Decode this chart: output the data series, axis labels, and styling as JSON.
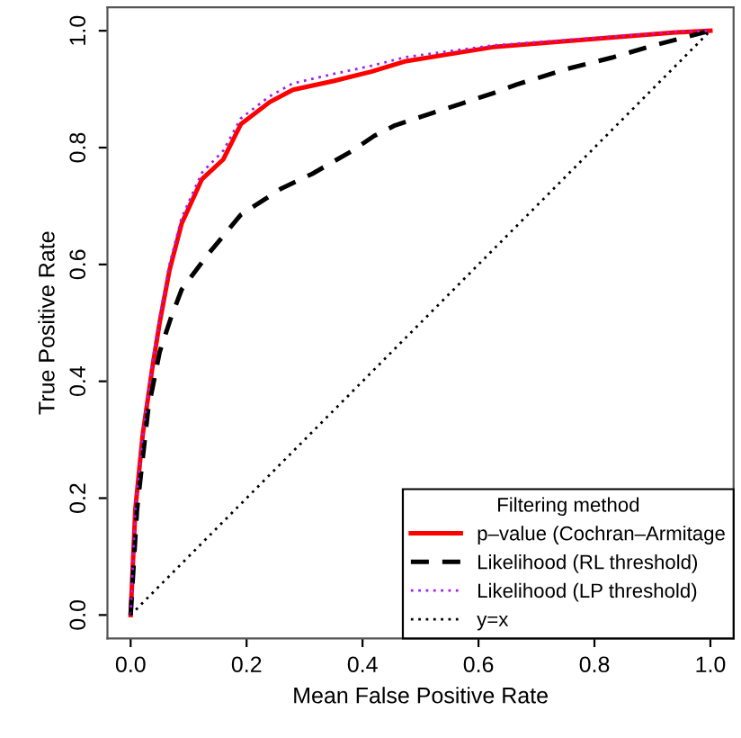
{
  "chart_data": {
    "type": "line",
    "xlabel": "Mean False Positive Rate",
    "ylabel": "True Positive Rate",
    "legend_title": "Filtering method",
    "legend": "bottom right",
    "grid": false,
    "xlim": [
      -0.04,
      1.04
    ],
    "ylim": [
      -0.04,
      1.04
    ],
    "xticks": [
      {
        "value": 0,
        "label": "0.0"
      },
      0.2,
      0.4,
      0.6,
      0.8,
      {
        "value": 1,
        "label": "1.0"
      }
    ],
    "yticks": [
      {
        "value": 0,
        "label": "0.0"
      },
      0.2,
      0.4,
      0.6,
      0.8,
      {
        "value": 1,
        "label": "1.0"
      }
    ],
    "series": [
      {
        "name": "p–value (Cochran–Armitage",
        "color": "#ff0000",
        "line_style": "solid",
        "x": [
          0,
          0.008,
          0.021,
          0.037,
          0.05,
          0.067,
          0.088,
          0.123,
          0.16,
          0.19,
          0.24,
          0.28,
          0.35,
          0.415,
          0.475,
          0.55,
          0.625,
          0.75,
          0.94,
          1
        ],
        "values": [
          0,
          0.18,
          0.31,
          0.42,
          0.5,
          0.59,
          0.67,
          0.746,
          0.78,
          0.84,
          0.878,
          0.899,
          0.914,
          0.93,
          0.948,
          0.96,
          0.972,
          0.982,
          0.997,
          1
        ]
      },
      {
        "name": "Likelihood (RL threshold)",
        "color": "#000000",
        "line_style": "dashed",
        "x": [
          0,
          0.011,
          0.03,
          0.05,
          0.07,
          0.088,
          0.134,
          0.19,
          0.26,
          0.313,
          0.383,
          0.42,
          0.456,
          0.548,
          0.625,
          0.666,
          0.75,
          0.83,
          0.91,
          1
        ],
        "values": [
          0,
          0.18,
          0.35,
          0.45,
          0.51,
          0.557,
          0.618,
          0.685,
          0.73,
          0.755,
          0.795,
          0.82,
          0.838,
          0.868,
          0.893,
          0.908,
          0.934,
          0.954,
          0.977,
          1
        ]
      },
      {
        "name": "Likelihood (LP threshold)",
        "color": "#a020f0",
        "line_style": "dotted",
        "x": [
          0,
          0.008,
          0.021,
          0.037,
          0.05,
          0.067,
          0.088,
          0.123,
          0.16,
          0.19,
          0.24,
          0.28,
          0.35,
          0.415,
          0.475,
          0.55,
          0.625,
          0.75,
          0.94,
          1
        ],
        "values": [
          0,
          0.18,
          0.31,
          0.43,
          0.51,
          0.6,
          0.68,
          0.757,
          0.795,
          0.85,
          0.888,
          0.91,
          0.926,
          0.94,
          0.955,
          0.965,
          0.975,
          0.984,
          0.998,
          1
        ]
      },
      {
        "name": "y=x",
        "color": "#000000",
        "line_style": "dotted",
        "x": [
          0,
          1
        ],
        "values": [
          0,
          1
        ]
      }
    ]
  }
}
